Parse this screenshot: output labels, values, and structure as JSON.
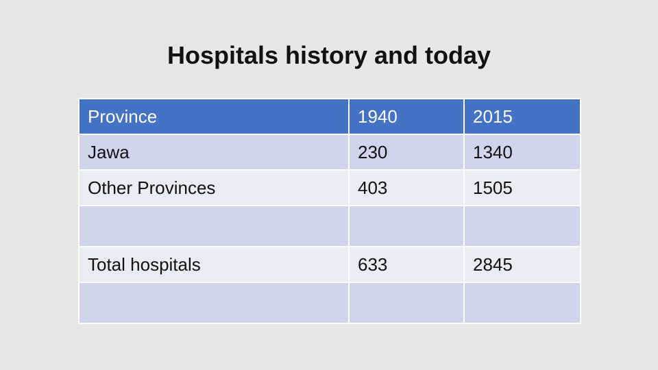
{
  "slide": {
    "title": "Hospitals history and today"
  },
  "table": {
    "headers": [
      "Province",
      "1940",
      "2015"
    ],
    "rows": [
      [
        "Jawa",
        "230",
        "1340"
      ],
      [
        "Other Provinces",
        "403",
        "1505"
      ],
      [
        "",
        "",
        ""
      ],
      [
        "Total hospitals",
        "633",
        "2845"
      ],
      [
        "",
        "",
        ""
      ]
    ]
  },
  "colors": {
    "background": "#e7e7e7",
    "header_fill": "#4472c4",
    "band_dark": "#cfd5ea",
    "band_light": "#e9ebf5"
  }
}
